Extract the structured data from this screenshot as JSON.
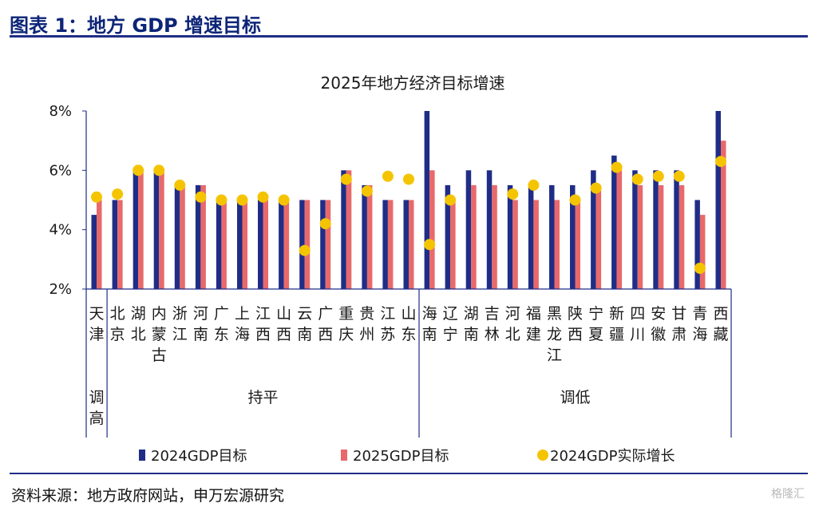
{
  "header": {
    "title": "图表 1：地方 GDP 增速目标"
  },
  "footer": {
    "source": "资料来源：地方政府网站，申万宏源研究",
    "watermark": "格隆汇"
  },
  "colors": {
    "accent": "#1f2d86",
    "series_2024_target": "#1f2d86",
    "series_2025_target": "#e8696b",
    "series_2024_actual": "#f5c400"
  },
  "chart_data": {
    "type": "bar",
    "title": "2025年地方经济目标增速",
    "ylim": [
      2,
      8
    ],
    "yticks": [
      "2%",
      "4%",
      "6%",
      "8%"
    ],
    "ytick_values": [
      2,
      4,
      6,
      8
    ],
    "categories": [
      "天津",
      "北京",
      "湖北",
      "内蒙古",
      "浙江",
      "河南",
      "广东",
      "上海",
      "江西",
      "山西",
      "云南",
      "广西",
      "重庆",
      "贵州",
      "江苏",
      "山东",
      "海南",
      "辽宁",
      "湖南",
      "吉林",
      "河北",
      "福建",
      "黑龙江",
      "陕西",
      "宁夏",
      "新疆",
      "四川",
      "安徽",
      "甘肃",
      "青海",
      "西藏"
    ],
    "groups": [
      {
        "label": "调高",
        "start": 0,
        "end": 0
      },
      {
        "label": "持平",
        "start": 1,
        "end": 15
      },
      {
        "label": "调低",
        "start": 16,
        "end": 30
      }
    ],
    "series": [
      {
        "name": "2024GDP目标",
        "type": "bar",
        "color": "#1f2d86",
        "values": [
          4.5,
          5,
          6,
          6,
          5.5,
          5.5,
          5,
          5,
          5,
          5,
          5,
          5,
          6,
          5.5,
          5,
          5,
          8,
          5.5,
          6,
          6,
          5.5,
          5.5,
          5.5,
          5.5,
          6,
          6.5,
          6,
          6,
          6,
          5,
          8
        ]
      },
      {
        "name": "2025GDP目标",
        "type": "bar",
        "color": "#e8696b",
        "values": [
          5,
          5,
          6,
          6,
          5.5,
          5.5,
          5,
          5,
          5,
          5,
          5,
          5,
          6,
          5.5,
          5,
          5,
          6,
          5,
          5.5,
          5.5,
          5,
          5,
          5,
          5,
          5.5,
          6,
          5.5,
          5.5,
          5.5,
          4.5,
          7
        ]
      },
      {
        "name": "2024GDP实际增长",
        "type": "scatter",
        "color": "#f5c400",
        "values": [
          5.1,
          5.2,
          6,
          6,
          5.5,
          5.1,
          5,
          5,
          5.1,
          5,
          3.3,
          4.2,
          5.7,
          5.3,
          5.8,
          5.7,
          3.5,
          5,
          null,
          null,
          5.2,
          5.5,
          null,
          5,
          5.4,
          6.1,
          5.7,
          5.8,
          5.8,
          2.7,
          6.3
        ]
      }
    ],
    "legend_position": "bottom",
    "grid": false
  }
}
